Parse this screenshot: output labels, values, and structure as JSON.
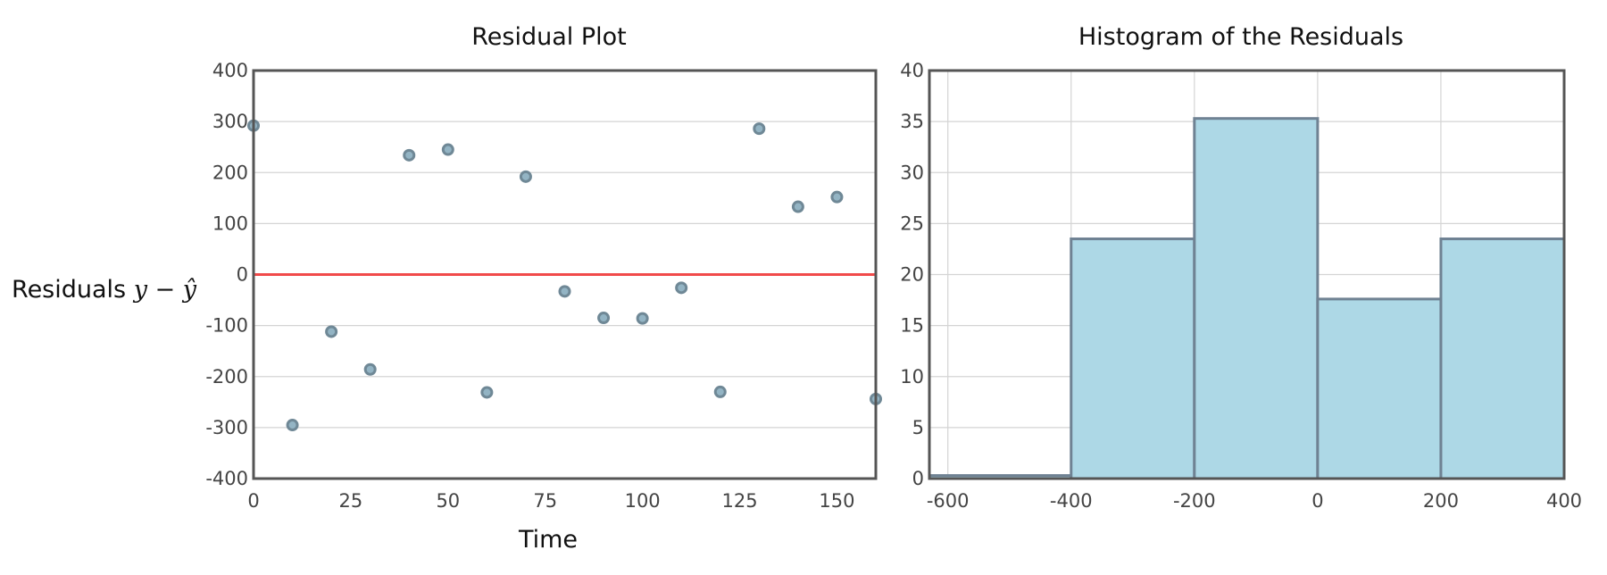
{
  "chart_data": [
    {
      "type": "scatter",
      "title": "Residual Plot",
      "xlabel": "Time",
      "ylabel": "Residuals",
      "ylabel_math": "y − ŷ",
      "xlim": [
        0,
        160
      ],
      "ylim": [
        -400,
        400
      ],
      "xticks": [
        0,
        25,
        50,
        75,
        100,
        125,
        150
      ],
      "yticks": [
        400,
        300,
        200,
        100,
        0,
        -100,
        -200,
        -300,
        -400
      ],
      "grid": true,
      "reference_line": {
        "y": 0,
        "color": "#f14a4a"
      },
      "point_color": "#93b4c4",
      "series": [
        {
          "x": [
            0,
            10,
            20,
            30,
            40,
            50,
            60,
            70,
            80,
            90,
            100,
            110,
            120,
            130,
            140,
            150,
            160
          ],
          "y": [
            292,
            -295,
            -112,
            -186,
            234,
            245,
            -231,
            192,
            -33,
            -85,
            -86,
            -26,
            -230,
            286,
            133,
            152,
            -244
          ]
        }
      ]
    },
    {
      "type": "bar",
      "title": "Histogram of the Residuals",
      "xlim": [
        -630,
        400
      ],
      "ylim": [
        0,
        40
      ],
      "xticks": [
        -600,
        -400,
        -200,
        0,
        200,
        400
      ],
      "yticks": [
        40,
        35,
        30,
        25,
        20,
        15,
        10,
        5,
        0
      ],
      "grid": true,
      "bar_color": "#add8e6",
      "bins": [
        {
          "from": -630,
          "to": -400,
          "value": 0.3
        },
        {
          "from": -400,
          "to": -200,
          "value": 23.5
        },
        {
          "from": -200,
          "to": 0,
          "value": 35.3
        },
        {
          "from": 0,
          "to": 200,
          "value": 17.6
        },
        {
          "from": 200,
          "to": 400,
          "value": 23.5
        }
      ]
    }
  ]
}
